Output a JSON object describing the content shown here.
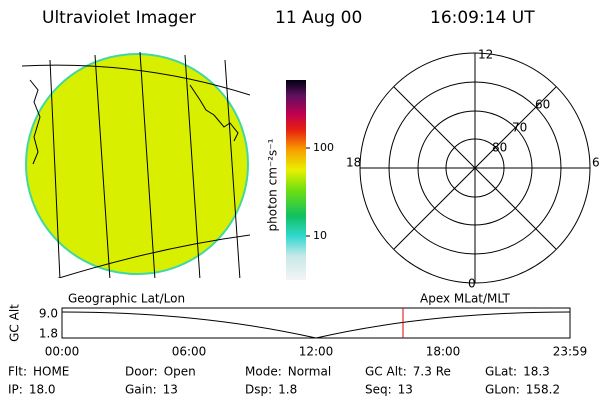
{
  "header": {
    "title": "Ultraviolet Imager",
    "date": "11 Aug 00",
    "time": "16:09:14 UT"
  },
  "colorbar": {
    "label": "photon cm⁻²s⁻¹",
    "ticks": [
      "100",
      "10"
    ]
  },
  "polar": {
    "mlt_labels": [
      "12",
      "18",
      "6",
      "0"
    ],
    "mlat_labels": [
      "60",
      "70",
      "80"
    ]
  },
  "panel_labels": {
    "left": "Geographic Lat/Lon",
    "right": "Apex MLat/MLT"
  },
  "altitude_plot": {
    "ylabel": "GC Alt",
    "yticks": [
      "9.0",
      "1.8"
    ],
    "xticks": [
      "00:00",
      "06:00",
      "12:00",
      "18:00",
      "23:59"
    ]
  },
  "info": [
    [
      {
        "label": "Flt:",
        "value": "HOME"
      },
      {
        "label": "Door:",
        "value": "Open"
      },
      {
        "label": "Mode:",
        "value": "Normal"
      },
      {
        "label": "GC Alt:",
        "value": "7.3 Re"
      },
      {
        "label": "GLat:",
        "value": "18.3"
      }
    ],
    [
      {
        "label": "IP:",
        "value": "18.0"
      },
      {
        "label": "Gain:",
        "value": "13"
      },
      {
        "label": "Dsp:",
        "value": "1.8"
      },
      {
        "label": "Seq:",
        "value": "13"
      },
      {
        "label": "GLon:",
        "value": "158.2"
      }
    ]
  ]
}
